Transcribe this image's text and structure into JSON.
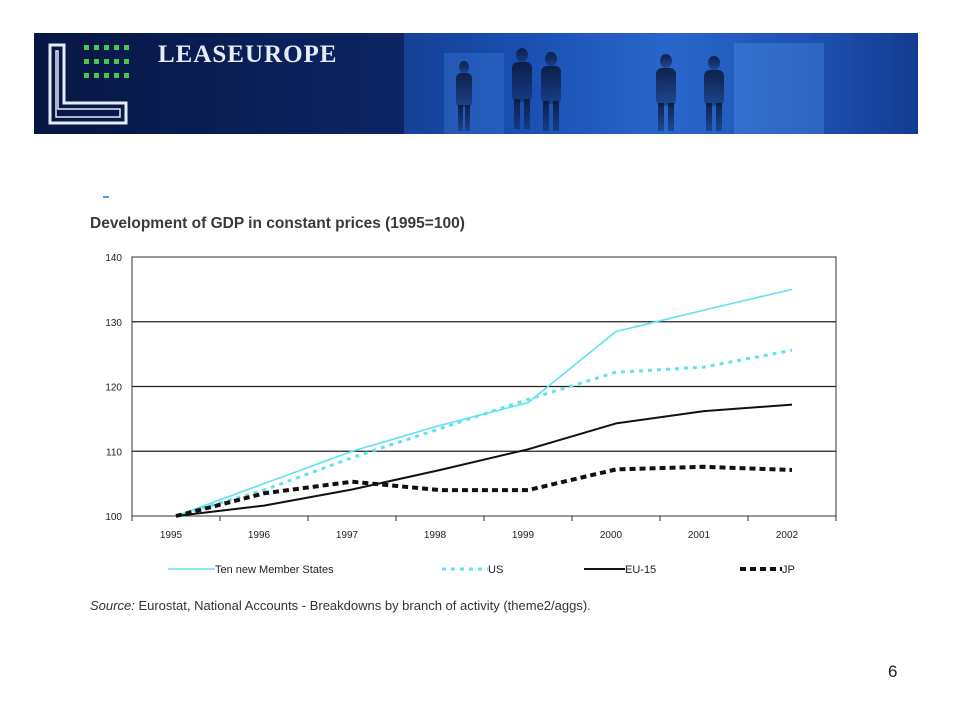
{
  "header": {
    "brand_name": "LEASEUROPE",
    "logo_letter": "L",
    "logo_icon": "leaseurope-logo-icon",
    "banner_image": "business-people-silhouettes"
  },
  "chart_data": {
    "type": "line",
    "title": "Development of GDP in constant prices (1995=100)",
    "xlabel": "",
    "ylabel": "",
    "categories": [
      "1995",
      "1996",
      "1997",
      "1998",
      "1999",
      "2000",
      "2001",
      "2002"
    ],
    "ylim": [
      100,
      140
    ],
    "yticks": [
      100,
      110,
      120,
      130,
      140
    ],
    "grid": "horizontal",
    "legend_position": "bottom",
    "series": [
      {
        "name": "Ten new Member States",
        "color": "#5fe3ef",
        "style": "solid",
        "values": [
          100,
          105,
          110,
          114,
          117.5,
          128.5,
          131.8,
          135
        ]
      },
      {
        "name": "US",
        "color": "#5fe3ef",
        "style": "dotted",
        "values": [
          100,
          104,
          109,
          113.5,
          118,
          122.2,
          123,
          125.6
        ]
      },
      {
        "name": "EU-15",
        "color": "#111111",
        "style": "solid",
        "values": [
          100,
          101.6,
          104.1,
          107.1,
          110.3,
          114.3,
          116.2,
          117.2
        ]
      },
      {
        "name": "JP",
        "color": "#111111",
        "style": "dashed",
        "values": [
          100,
          103.5,
          105.3,
          104,
          104,
          107.2,
          107.6,
          107.1
        ]
      }
    ]
  },
  "source": {
    "label": "Source:",
    "text": "Eurostat, National Accounts - Breakdowns by branch of activity (theme2/aggs)."
  },
  "slide_number": "6"
}
